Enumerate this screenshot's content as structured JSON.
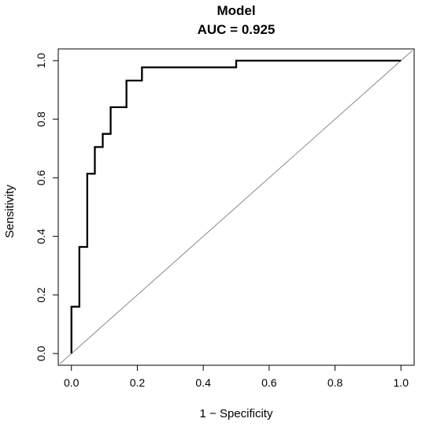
{
  "chart_data": {
    "type": "line",
    "title": "Model",
    "subtitle": "AUC = 0.925",
    "xlabel": "1 − Specificity",
    "ylabel": "Sensitivity",
    "xlim": [
      -0.04,
      1.04
    ],
    "ylim": [
      -0.04,
      1.04
    ],
    "x_ticks": [
      0.0,
      0.2,
      0.4,
      0.6,
      0.8,
      1.0
    ],
    "x_tick_labels": [
      "0.0",
      "0.2",
      "0.4",
      "0.6",
      "0.8",
      "1.0"
    ],
    "y_ticks": [
      0.0,
      0.2,
      0.4,
      0.6,
      0.8,
      1.0
    ],
    "y_tick_labels": [
      "0.0",
      "0.2",
      "0.4",
      "0.6",
      "0.8",
      "1.0"
    ],
    "grid": false,
    "legend": "none",
    "reference_line": {
      "x": [
        0,
        1
      ],
      "y": [
        0,
        1
      ],
      "color": "#8a8a8a"
    },
    "series": [
      {
        "color": "#000000",
        "step": true,
        "x": [
          0.0,
          0.0,
          0.024,
          0.024,
          0.048,
          0.048,
          0.071,
          0.071,
          0.095,
          0.095,
          0.119,
          0.119,
          0.167,
          0.167,
          0.214,
          0.214,
          0.5,
          0.5,
          1.0
        ],
        "y": [
          0.0,
          0.16,
          0.16,
          0.364,
          0.364,
          0.614,
          0.614,
          0.705,
          0.705,
          0.75,
          0.75,
          0.841,
          0.841,
          0.932,
          0.932,
          0.977,
          0.977,
          1.0,
          1.0
        ]
      }
    ]
  }
}
